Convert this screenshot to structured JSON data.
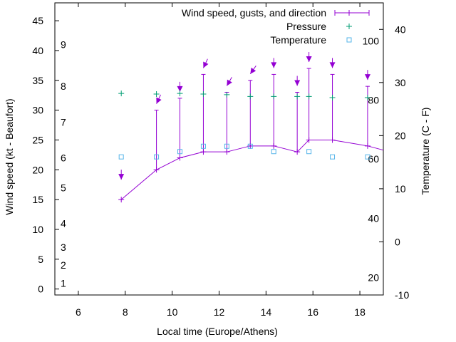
{
  "chart_data": {
    "type": "line",
    "xlabel": "Local time (Europe/Athens)",
    "ylabel_left": "Wind speed (kt - Beaufort)",
    "ylabel_right": "Temperature (C - F)",
    "xlim": [
      5,
      19
    ],
    "ylim_left": [
      -1,
      48
    ],
    "ylim_right": [
      -10,
      45
    ],
    "xticks": [
      "6",
      "8",
      "10",
      "12",
      "14",
      "16",
      "18"
    ],
    "yticks_left": [
      "0",
      "5",
      "10",
      "15",
      "20",
      "25",
      "30",
      "35",
      "40",
      "45"
    ],
    "yticks_right": [
      "-10",
      "0",
      "10",
      "20",
      "30",
      "40"
    ],
    "beaufort_labels": [
      {
        "text": "1",
        "kt": 1
      },
      {
        "text": "2",
        "kt": 4
      },
      {
        "text": "3",
        "kt": 7
      },
      {
        "text": "4",
        "kt": 11
      },
      {
        "text": "5",
        "kt": 17
      },
      {
        "text": "6",
        "kt": 22
      },
      {
        "text": "7",
        "kt": 28
      },
      {
        "text": "8",
        "kt": 34
      },
      {
        "text": "9",
        "kt": 41
      }
    ],
    "fahrenheit_labels": [
      {
        "text": "20",
        "c": -6.7
      },
      {
        "text": "40",
        "c": 4.4
      },
      {
        "text": "60",
        "c": 15.6
      },
      {
        "text": "80",
        "c": 26.7
      },
      {
        "text": "100",
        "c": 37.8
      }
    ],
    "legend_position": "top-right",
    "series": [
      {
        "name": "Wind speed, gusts, and direction",
        "color": "#9400d3",
        "x": [
          7.83,
          9.33,
          10.33,
          11.33,
          12.33,
          13.33,
          14.33,
          15.33,
          15.83,
          16.83,
          18.33,
          19.0
        ],
        "speed": [
          15,
          20,
          22,
          23,
          23,
          24,
          24,
          23,
          25,
          25,
          24,
          23.3
        ],
        "gust": [
          null,
          30,
          32,
          36,
          33,
          35,
          36,
          33,
          37,
          36,
          34,
          null
        ]
      },
      {
        "name": "Pressure",
        "color": "#009e73",
        "x": [
          7.83,
          9.33,
          10.33,
          11.33,
          12.33,
          13.33,
          14.33,
          15.33,
          15.83,
          16.83,
          18.33
        ],
        "y": [
          32.8,
          32.7,
          32.8,
          32.7,
          32.6,
          32.3,
          32.3,
          32.3,
          32.3,
          32.1,
          32.1
        ]
      },
      {
        "name": "Temperature",
        "color": "#56b4e9",
        "x": [
          7.83,
          9.33,
          10.33,
          11.33,
          12.33,
          13.33,
          14.33,
          15.83,
          16.83,
          18.33
        ],
        "y": [
          16,
          16,
          17,
          18,
          18,
          18,
          17,
          17,
          16,
          16
        ]
      }
    ],
    "wind_arrows": [
      {
        "x": 7.83,
        "speed": 15,
        "dir_deg": 0
      },
      {
        "x": 9.33,
        "speed": 20,
        "dir_deg": 335
      },
      {
        "x": 10.33,
        "speed": 22,
        "dir_deg": 0
      },
      {
        "x": 11.33,
        "speed": 23,
        "dir_deg": 335
      },
      {
        "x": 12.33,
        "speed": 23,
        "dir_deg": 330
      },
      {
        "x": 13.33,
        "speed": 24,
        "dir_deg": 325
      },
      {
        "x": 14.33,
        "speed": 24,
        "dir_deg": 0
      },
      {
        "x": 15.33,
        "speed": 23,
        "dir_deg": 0
      },
      {
        "x": 15.83,
        "speed": 25,
        "dir_deg": 0
      },
      {
        "x": 16.83,
        "speed": 25,
        "dir_deg": 0
      },
      {
        "x": 18.33,
        "speed": 24,
        "dir_deg": 0
      }
    ]
  }
}
